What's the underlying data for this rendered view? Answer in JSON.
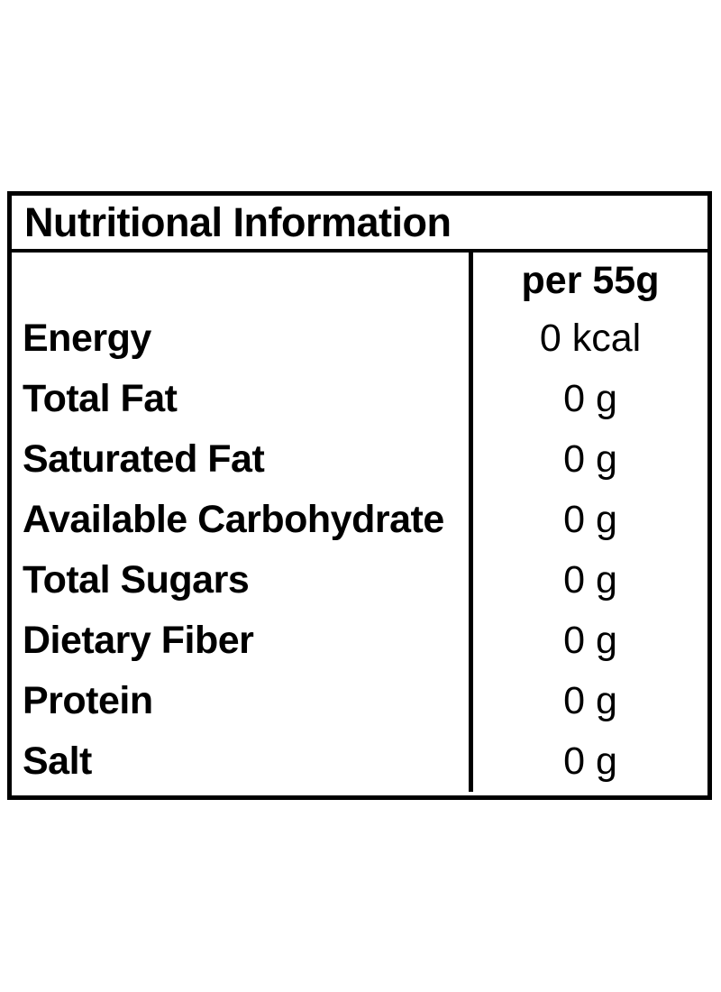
{
  "table": {
    "title": "Nutritional Information",
    "column_header": "per 55g",
    "rows": [
      {
        "label": "Energy",
        "value": "0 kcal"
      },
      {
        "label": "Total Fat",
        "value": "0 g"
      },
      {
        "label": "Saturated Fat",
        "value": "0 g"
      },
      {
        "label": "Available Carbohydrate",
        "value": "0 g"
      },
      {
        "label": "Total Sugars",
        "value": "0 g"
      },
      {
        "label": "Dietary Fiber",
        "value": "0 g"
      },
      {
        "label": "Protein",
        "value": "0 g"
      },
      {
        "label": "Salt",
        "value": "0 g"
      }
    ],
    "colors": {
      "border": "#000000",
      "text": "#000000",
      "background": "#ffffff"
    }
  }
}
